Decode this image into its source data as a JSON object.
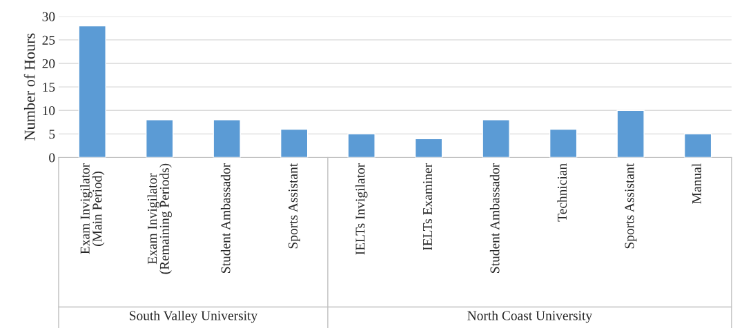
{
  "chart_data": {
    "type": "bar",
    "ylabel": "Number of Hours",
    "categories": [
      "Exam Invigilator\n(Main Period)",
      "Exam Invigilator\n(Remaining Periods)",
      "Student Ambassador",
      "Sports Assistant",
      "IELTs Invigilator",
      "IELTs Examiner",
      "Student Ambassador",
      "Technician",
      "Sports Assistant",
      "Manual"
    ],
    "values": [
      28,
      8,
      8,
      6,
      5,
      4,
      8,
      6,
      10,
      5
    ],
    "color": "#5b9bd5",
    "ylim": [
      0,
      30
    ],
    "yticks": [
      0,
      5,
      10,
      15,
      20,
      25,
      30
    ],
    "grid": "y",
    "annotations": [
      "South Valley University",
      "North Coast University"
    ]
  }
}
